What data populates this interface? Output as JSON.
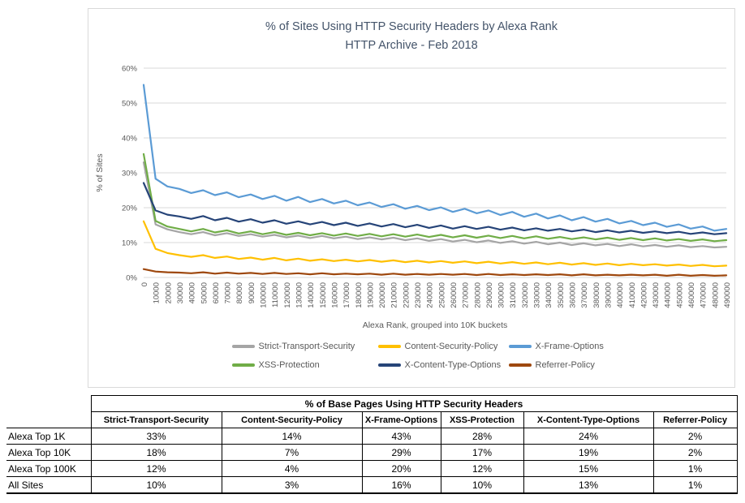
{
  "chart": {
    "title_line1": "% of Sites Using HTTP Security Headers by Alexa Rank",
    "title_line2": "HTTP Archive - Feb 2018",
    "title_color": "#44546a",
    "axis_text_color": "#595959",
    "gridline_color": "#d9d9d9"
  },
  "chart_data": {
    "type": "line",
    "title": "% of Sites Using HTTP Security Headers by Alexa Rank — HTTP Archive - Feb 2018",
    "xlabel": "Alexa Rank, grouped into 10K buckets",
    "ylabel": "% of Sites",
    "ylim": [
      0,
      60
    ],
    "y_tick_labels": [
      "0%",
      "10%",
      "20%",
      "30%",
      "40%",
      "50%",
      "60%"
    ],
    "grid": "horizontal",
    "legend_position": "bottom",
    "x": [
      0,
      10000,
      20000,
      30000,
      40000,
      50000,
      60000,
      70000,
      80000,
      90000,
      100000,
      110000,
      120000,
      130000,
      140000,
      150000,
      160000,
      170000,
      180000,
      190000,
      200000,
      210000,
      220000,
      230000,
      240000,
      250000,
      260000,
      270000,
      280000,
      290000,
      300000,
      310000,
      320000,
      330000,
      340000,
      350000,
      360000,
      370000,
      380000,
      390000,
      400000,
      410000,
      420000,
      430000,
      440000,
      450000,
      460000,
      470000,
      480000,
      490000
    ],
    "series": [
      {
        "name": "Strict-Transport-Security",
        "color": "#a5a5a5",
        "values": [
          33.0,
          15.2,
          13.8,
          13.0,
          12.4,
          13.0,
          12.1,
          12.7,
          11.9,
          12.4,
          11.7,
          12.2,
          11.5,
          12.0,
          11.3,
          11.9,
          11.2,
          11.7,
          11.0,
          11.5,
          10.9,
          11.4,
          10.7,
          11.2,
          10.5,
          11.0,
          10.3,
          10.8,
          10.1,
          10.6,
          9.9,
          10.4,
          9.7,
          10.2,
          9.5,
          10.0,
          9.3,
          9.8,
          9.2,
          9.6,
          9.0,
          9.5,
          8.9,
          9.3,
          8.8,
          9.2,
          8.7,
          9.0,
          8.6,
          8.8
        ]
      },
      {
        "name": "Content-Security-Policy",
        "color": "#ffc000",
        "values": [
          16.1,
          8.2,
          7.0,
          6.4,
          5.9,
          6.4,
          5.6,
          6.0,
          5.3,
          5.7,
          5.1,
          5.6,
          4.9,
          5.4,
          4.8,
          5.2,
          4.7,
          5.1,
          4.6,
          5.0,
          4.5,
          4.9,
          4.4,
          4.8,
          4.3,
          4.7,
          4.2,
          4.6,
          4.1,
          4.5,
          4.0,
          4.4,
          3.9,
          4.3,
          3.8,
          4.2,
          3.7,
          4.1,
          3.6,
          4.0,
          3.5,
          3.9,
          3.5,
          3.8,
          3.4,
          3.7,
          3.3,
          3.6,
          3.2,
          3.4
        ]
      },
      {
        "name": "X-Frame-Options",
        "color": "#5b9bd5",
        "values": [
          55.2,
          28.3,
          26.1,
          25.4,
          24.2,
          25.0,
          23.6,
          24.4,
          23.0,
          23.8,
          22.5,
          23.4,
          22.0,
          23.1,
          21.6,
          22.5,
          21.2,
          22.0,
          20.7,
          21.5,
          20.2,
          21.0,
          19.7,
          20.5,
          19.3,
          20.1,
          18.8,
          19.7,
          18.4,
          19.2,
          17.9,
          18.8,
          17.4,
          18.3,
          16.9,
          17.8,
          16.4,
          17.3,
          16.0,
          16.8,
          15.5,
          16.2,
          15.0,
          15.7,
          14.5,
          15.2,
          14.0,
          14.6,
          13.4,
          13.9
        ]
      },
      {
        "name": "XSS-Protection",
        "color": "#70ad47",
        "values": [
          35.4,
          16.2,
          14.6,
          13.9,
          13.2,
          13.9,
          12.9,
          13.5,
          12.6,
          13.2,
          12.4,
          13.0,
          12.2,
          12.8,
          12.1,
          12.7,
          12.0,
          12.6,
          11.9,
          12.5,
          11.8,
          12.4,
          11.7,
          12.3,
          11.6,
          12.2,
          11.5,
          12.1,
          11.4,
          12.0,
          11.3,
          11.9,
          11.2,
          11.8,
          11.1,
          11.6,
          11.0,
          11.5,
          10.9,
          11.4,
          10.8,
          11.3,
          10.7,
          11.2,
          10.6,
          11.0,
          10.5,
          10.9,
          10.4,
          10.7
        ]
      },
      {
        "name": "X-Content-Type-Options",
        "color": "#264478",
        "values": [
          27.1,
          19.2,
          18.0,
          17.5,
          16.8,
          17.6,
          16.4,
          17.1,
          16.0,
          16.7,
          15.7,
          16.4,
          15.4,
          16.1,
          15.2,
          15.9,
          15.0,
          15.7,
          14.8,
          15.5,
          14.6,
          15.3,
          14.4,
          15.1,
          14.2,
          14.9,
          14.0,
          14.7,
          13.9,
          14.5,
          13.7,
          14.3,
          13.5,
          14.1,
          13.4,
          13.9,
          13.2,
          13.7,
          13.0,
          13.5,
          12.9,
          13.4,
          12.8,
          13.2,
          12.7,
          13.1,
          12.5,
          12.9,
          12.4,
          12.7
        ]
      },
      {
        "name": "Referrer-Policy",
        "color": "#9e480e",
        "values": [
          2.4,
          1.7,
          1.5,
          1.4,
          1.2,
          1.5,
          1.1,
          1.4,
          1.1,
          1.3,
          1.0,
          1.3,
          1.0,
          1.2,
          0.9,
          1.2,
          0.9,
          1.1,
          0.9,
          1.1,
          0.8,
          1.1,
          0.8,
          1.0,
          0.8,
          1.0,
          0.8,
          1.0,
          0.7,
          1.0,
          0.7,
          0.9,
          0.7,
          0.9,
          0.7,
          0.9,
          0.6,
          0.9,
          0.6,
          0.8,
          0.6,
          0.8,
          0.6,
          0.8,
          0.5,
          0.8,
          0.5,
          0.7,
          0.5,
          0.6
        ]
      }
    ]
  },
  "table": {
    "title": "% of Base Pages Using HTTP Security Headers",
    "columns": [
      "Strict-Transport-Security",
      "Content-Security-Policy",
      "X-Frame-Options",
      "XSS-Protection",
      "X-Content-Type-Options",
      "Referrer-Policy"
    ],
    "rows": [
      {
        "label": "Alexa Top 1K",
        "values": [
          "33%",
          "14%",
          "43%",
          "28%",
          "24%",
          "2%"
        ]
      },
      {
        "label": "Alexa Top 10K",
        "values": [
          "18%",
          "7%",
          "29%",
          "17%",
          "19%",
          "2%"
        ]
      },
      {
        "label": "Alexa Top 100K",
        "values": [
          "12%",
          "4%",
          "20%",
          "12%",
          "15%",
          "1%"
        ]
      },
      {
        "label": "All Sites",
        "values": [
          "10%",
          "3%",
          "16%",
          "10%",
          "13%",
          "1%"
        ]
      }
    ]
  }
}
